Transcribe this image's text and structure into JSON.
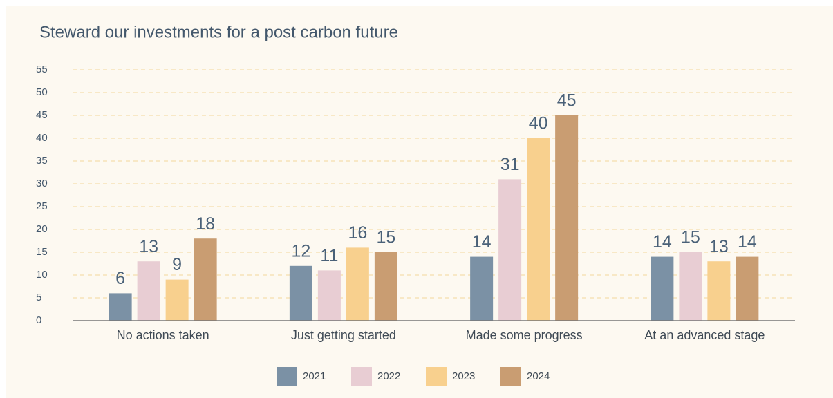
{
  "chart_data": {
    "type": "bar",
    "title": "Steward our investments for a post carbon future",
    "categories": [
      "No actions taken",
      "Just getting started",
      "Made some progress",
      "At an advanced stage"
    ],
    "series": [
      {
        "name": "2021",
        "color": "#7b91a5",
        "values": [
          6,
          12,
          14,
          14
        ]
      },
      {
        "name": "2022",
        "color": "#e8cdd3",
        "values": [
          13,
          11,
          31,
          15
        ]
      },
      {
        "name": "2023",
        "color": "#f8d08e",
        "values": [
          9,
          16,
          40,
          13
        ]
      },
      {
        "name": "2024",
        "color": "#c99d72",
        "values": [
          18,
          15,
          45,
          14
        ]
      }
    ],
    "ylim": [
      0,
      55
    ],
    "yticks": [
      0,
      5,
      10,
      15,
      20,
      25,
      30,
      35,
      40,
      45,
      50,
      55
    ],
    "grid": true,
    "legend": "bottom"
  }
}
